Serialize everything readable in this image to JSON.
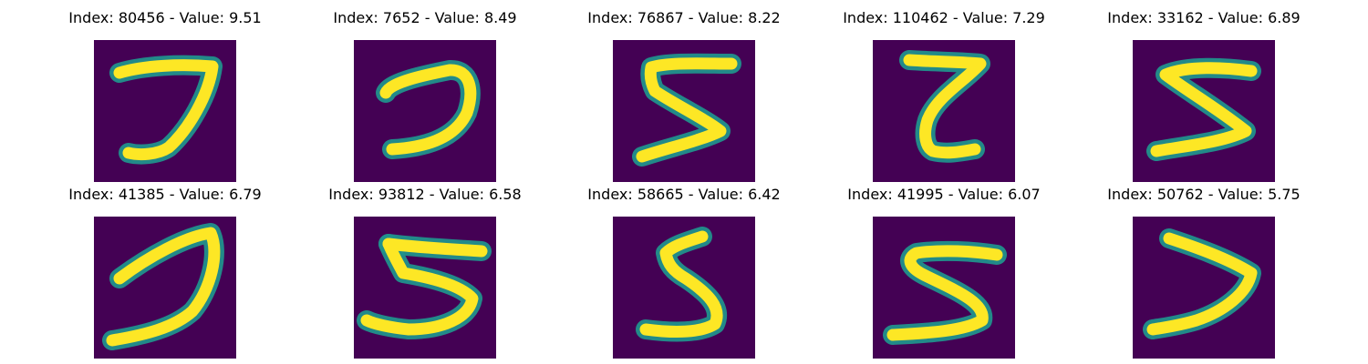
{
  "colors": {
    "background": "#440154",
    "mid": "#21918c",
    "ink": "#fde725"
  },
  "panels": [
    {
      "title": "Index: 80456 - Value: 9.51",
      "digit_shape": "seven-like stroke, horizontal top bar with curved diagonal down-left"
    },
    {
      "title": "Index: 7652 - Value: 8.49",
      "digit_shape": "open curve like a reversed C"
    },
    {
      "title": "Index: 76867 - Value: 8.22",
      "digit_shape": "five with sharp zigzag"
    },
    {
      "title": "Index: 110462 - Value: 7.29",
      "digit_shape": "compact z-like five"
    },
    {
      "title": "Index: 33162 - Value: 6.89",
      "digit_shape": "wide zigzag five"
    },
    {
      "title": "Index: 41385 - Value: 6.79",
      "digit_shape": "tall curved seven-like stroke"
    },
    {
      "title": "Index: 93812 - Value: 6.58",
      "digit_shape": "classic five"
    },
    {
      "title": "Index: 58665 - Value: 6.42",
      "digit_shape": "narrow five"
    },
    {
      "title": "Index: 41995 - Value: 6.07",
      "digit_shape": "wide classic five"
    },
    {
      "title": "Index: 50762 - Value: 5.75",
      "digit_shape": "reversed C curve"
    }
  ]
}
